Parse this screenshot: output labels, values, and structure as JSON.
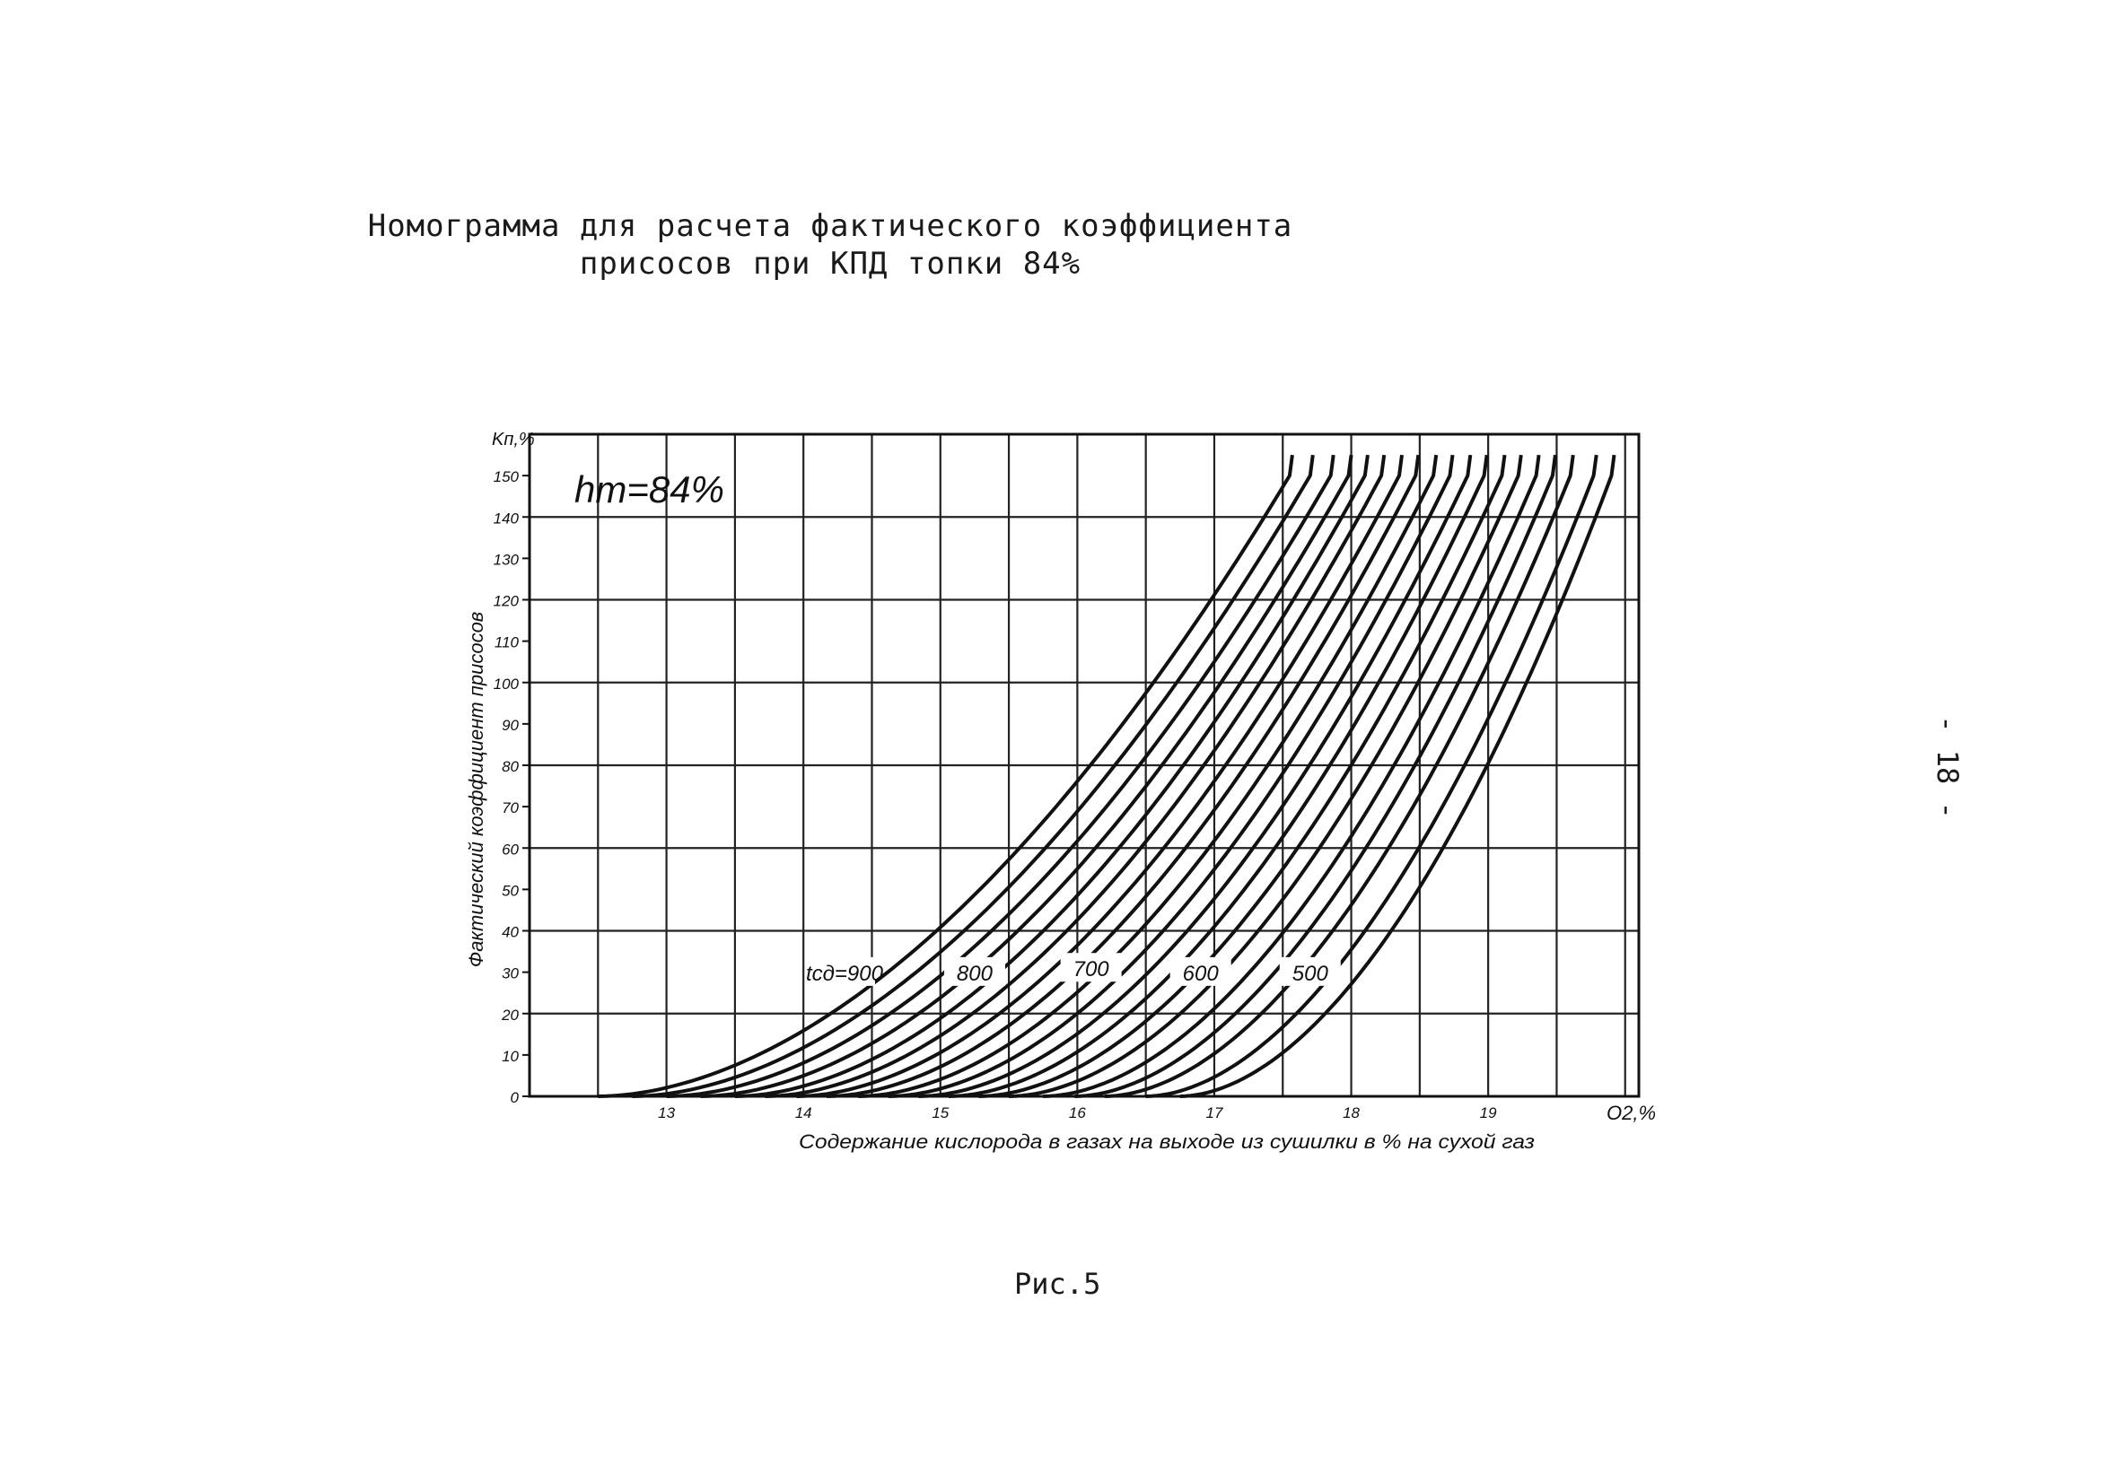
{
  "page": {
    "title_line1": "Номограмма для расчета фактического коэффициента",
    "title_line2": "присосов при КПД топки 84%",
    "caption": "Рис.5",
    "page_number": "- 18 -"
  },
  "chart_data": {
    "type": "line",
    "title": "Номограмма для расчета фактического коэффициента присосов при КПД топки 84%",
    "annotation": "hm=84%",
    "xlabel": "Содержание кислорода в газах на выходе из сушилки в % на сухой газ",
    "ylabel": "Фактический коэффициент присосов",
    "x_axis_unit": "O2,%",
    "y_axis_unit": "Kп,%",
    "xlim": [
      12,
      20.1
    ],
    "ylim": [
      0,
      160
    ],
    "x_ticks": [
      12,
      13,
      14,
      15,
      16,
      17,
      18,
      19,
      20
    ],
    "x_tick_labels": [
      "",
      "13",
      "14",
      "15",
      "16",
      "17",
      "18",
      "19",
      ""
    ],
    "x_grid_minor": 0.5,
    "y_ticks": [
      0,
      10,
      20,
      30,
      40,
      50,
      60,
      70,
      80,
      90,
      100,
      110,
      120,
      130,
      140,
      150
    ],
    "y_tick_labels": [
      "0",
      "10",
      "20",
      "30",
      "40",
      "50",
      "60",
      "70",
      "80",
      "90",
      "100",
      "110",
      "120",
      "130",
      "140",
      "150"
    ],
    "y_grid_major": 20,
    "grid": true,
    "legend": "none",
    "curve_labels": [
      {
        "text": "tсд=900",
        "x": 14.3,
        "y": 28
      },
      {
        "text": "800",
        "x": 15.25,
        "y": 28
      },
      {
        "text": "700",
        "x": 16.1,
        "y": 29
      },
      {
        "text": "600",
        "x": 16.9,
        "y": 28
      },
      {
        "text": "500",
        "x": 17.7,
        "y": 28
      }
    ],
    "series": [
      {
        "x0": 12.5,
        "x150": 17.55
      },
      {
        "x0": 12.75,
        "x150": 17.7
      },
      {
        "x0": 13.0,
        "x150": 17.85
      },
      {
        "x0": 13.25,
        "x150": 17.98
      },
      {
        "x0": 13.5,
        "x150": 18.1
      },
      {
        "x0": 13.72,
        "x150": 18.22
      },
      {
        "x0": 13.95,
        "x150": 18.35
      },
      {
        "x0": 14.17,
        "x150": 18.47
      },
      {
        "x0": 14.4,
        "x150": 18.6
      },
      {
        "x0": 14.62,
        "x150": 18.72
      },
      {
        "x0": 14.84,
        "x150": 18.85
      },
      {
        "x0": 15.06,
        "x150": 18.97
      },
      {
        "x0": 15.28,
        "x150": 19.1
      },
      {
        "x0": 15.5,
        "x150": 19.22
      },
      {
        "x0": 15.75,
        "x150": 19.35
      },
      {
        "x0": 15.98,
        "x150": 19.47
      },
      {
        "x0": 16.2,
        "x150": 19.6
      },
      {
        "x0": 16.5,
        "x150": 19.77
      },
      {
        "x0": 16.75,
        "x150": 19.9
      }
    ]
  }
}
